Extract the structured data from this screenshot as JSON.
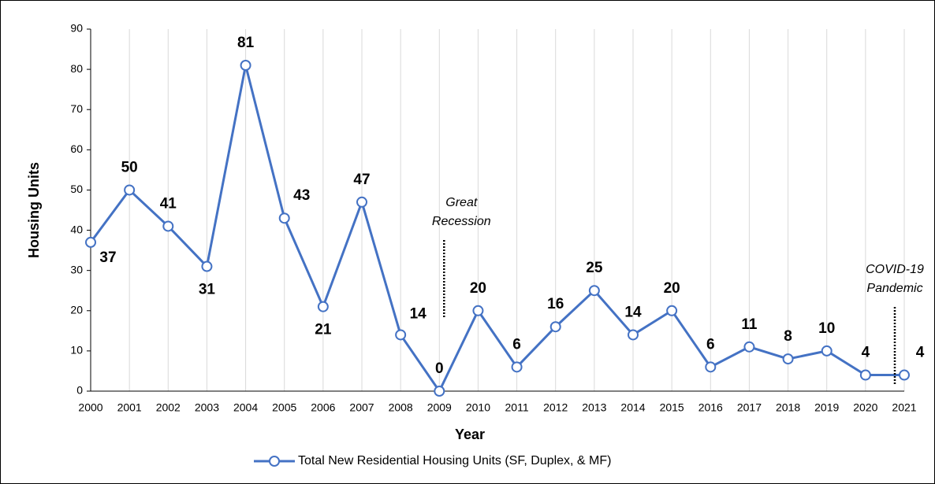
{
  "chart_data": {
    "type": "line",
    "x_label": "Year",
    "y_label": "Housing Units",
    "categories": [
      "2000",
      "2001",
      "2002",
      "2003",
      "2004",
      "2005",
      "2006",
      "2007",
      "2008",
      "2009",
      "2010",
      "2011",
      "2012",
      "2013",
      "2014",
      "2015",
      "2016",
      "2017",
      "2018",
      "2019",
      "2020",
      "2021"
    ],
    "series": [
      {
        "name": "Total New Residential Housing Units (SF, Duplex, & MF)",
        "color": "#4472c4",
        "values": [
          37,
          50,
          41,
          31,
          81,
          43,
          21,
          47,
          14,
          0,
          20,
          6,
          16,
          25,
          14,
          20,
          6,
          11,
          8,
          10,
          4,
          4
        ]
      }
    ],
    "ylim": [
      0,
      90
    ],
    "yticks": [
      0,
      10,
      20,
      30,
      40,
      50,
      60,
      70,
      80,
      90
    ],
    "grid": true,
    "legend": "bottom",
    "annotations": [
      {
        "lines": [
          "Great",
          "Recession"
        ],
        "category": 9
      },
      {
        "lines": [
          "COVID-19",
          "Pandemic"
        ],
        "category": 21
      }
    ]
  }
}
